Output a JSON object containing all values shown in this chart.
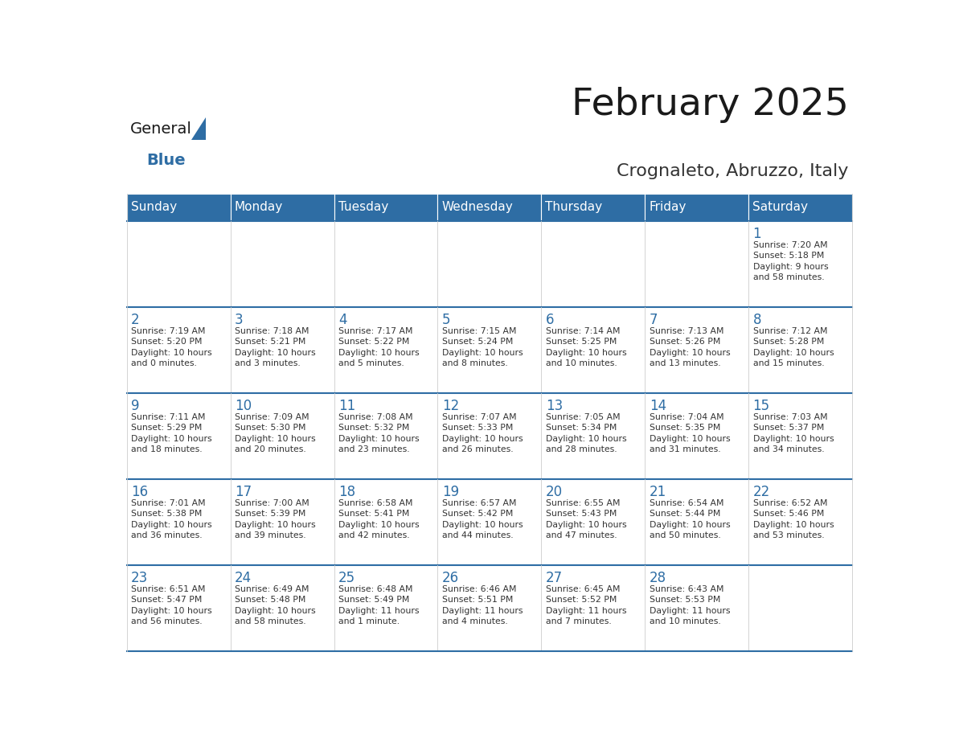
{
  "title": "February 2025",
  "subtitle": "Crognaleto, Abruzzo, Italy",
  "header_bg": "#2E6DA4",
  "header_text": "#FFFFFF",
  "divider_color": "#2E6DA4",
  "text_color": "#333333",
  "days_of_week": [
    "Sunday",
    "Monday",
    "Tuesday",
    "Wednesday",
    "Thursday",
    "Friday",
    "Saturday"
  ],
  "logo_general_color": "#1a1a1a",
  "logo_blue_color": "#2E6DA4",
  "calendar_data": [
    [
      {
        "day": "",
        "info": ""
      },
      {
        "day": "",
        "info": ""
      },
      {
        "day": "",
        "info": ""
      },
      {
        "day": "",
        "info": ""
      },
      {
        "day": "",
        "info": ""
      },
      {
        "day": "",
        "info": ""
      },
      {
        "day": "1",
        "info": "Sunrise: 7:20 AM\nSunset: 5:18 PM\nDaylight: 9 hours\nand 58 minutes."
      }
    ],
    [
      {
        "day": "2",
        "info": "Sunrise: 7:19 AM\nSunset: 5:20 PM\nDaylight: 10 hours\nand 0 minutes."
      },
      {
        "day": "3",
        "info": "Sunrise: 7:18 AM\nSunset: 5:21 PM\nDaylight: 10 hours\nand 3 minutes."
      },
      {
        "day": "4",
        "info": "Sunrise: 7:17 AM\nSunset: 5:22 PM\nDaylight: 10 hours\nand 5 minutes."
      },
      {
        "day": "5",
        "info": "Sunrise: 7:15 AM\nSunset: 5:24 PM\nDaylight: 10 hours\nand 8 minutes."
      },
      {
        "day": "6",
        "info": "Sunrise: 7:14 AM\nSunset: 5:25 PM\nDaylight: 10 hours\nand 10 minutes."
      },
      {
        "day": "7",
        "info": "Sunrise: 7:13 AM\nSunset: 5:26 PM\nDaylight: 10 hours\nand 13 minutes."
      },
      {
        "day": "8",
        "info": "Sunrise: 7:12 AM\nSunset: 5:28 PM\nDaylight: 10 hours\nand 15 minutes."
      }
    ],
    [
      {
        "day": "9",
        "info": "Sunrise: 7:11 AM\nSunset: 5:29 PM\nDaylight: 10 hours\nand 18 minutes."
      },
      {
        "day": "10",
        "info": "Sunrise: 7:09 AM\nSunset: 5:30 PM\nDaylight: 10 hours\nand 20 minutes."
      },
      {
        "day": "11",
        "info": "Sunrise: 7:08 AM\nSunset: 5:32 PM\nDaylight: 10 hours\nand 23 minutes."
      },
      {
        "day": "12",
        "info": "Sunrise: 7:07 AM\nSunset: 5:33 PM\nDaylight: 10 hours\nand 26 minutes."
      },
      {
        "day": "13",
        "info": "Sunrise: 7:05 AM\nSunset: 5:34 PM\nDaylight: 10 hours\nand 28 minutes."
      },
      {
        "day": "14",
        "info": "Sunrise: 7:04 AM\nSunset: 5:35 PM\nDaylight: 10 hours\nand 31 minutes."
      },
      {
        "day": "15",
        "info": "Sunrise: 7:03 AM\nSunset: 5:37 PM\nDaylight: 10 hours\nand 34 minutes."
      }
    ],
    [
      {
        "day": "16",
        "info": "Sunrise: 7:01 AM\nSunset: 5:38 PM\nDaylight: 10 hours\nand 36 minutes."
      },
      {
        "day": "17",
        "info": "Sunrise: 7:00 AM\nSunset: 5:39 PM\nDaylight: 10 hours\nand 39 minutes."
      },
      {
        "day": "18",
        "info": "Sunrise: 6:58 AM\nSunset: 5:41 PM\nDaylight: 10 hours\nand 42 minutes."
      },
      {
        "day": "19",
        "info": "Sunrise: 6:57 AM\nSunset: 5:42 PM\nDaylight: 10 hours\nand 44 minutes."
      },
      {
        "day": "20",
        "info": "Sunrise: 6:55 AM\nSunset: 5:43 PM\nDaylight: 10 hours\nand 47 minutes."
      },
      {
        "day": "21",
        "info": "Sunrise: 6:54 AM\nSunset: 5:44 PM\nDaylight: 10 hours\nand 50 minutes."
      },
      {
        "day": "22",
        "info": "Sunrise: 6:52 AM\nSunset: 5:46 PM\nDaylight: 10 hours\nand 53 minutes."
      }
    ],
    [
      {
        "day": "23",
        "info": "Sunrise: 6:51 AM\nSunset: 5:47 PM\nDaylight: 10 hours\nand 56 minutes."
      },
      {
        "day": "24",
        "info": "Sunrise: 6:49 AM\nSunset: 5:48 PM\nDaylight: 10 hours\nand 58 minutes."
      },
      {
        "day": "25",
        "info": "Sunrise: 6:48 AM\nSunset: 5:49 PM\nDaylight: 11 hours\nand 1 minute."
      },
      {
        "day": "26",
        "info": "Sunrise: 6:46 AM\nSunset: 5:51 PM\nDaylight: 11 hours\nand 4 minutes."
      },
      {
        "day": "27",
        "info": "Sunrise: 6:45 AM\nSunset: 5:52 PM\nDaylight: 11 hours\nand 7 minutes."
      },
      {
        "day": "28",
        "info": "Sunrise: 6:43 AM\nSunset: 5:53 PM\nDaylight: 11 hours\nand 10 minutes."
      },
      {
        "day": "",
        "info": ""
      }
    ]
  ]
}
